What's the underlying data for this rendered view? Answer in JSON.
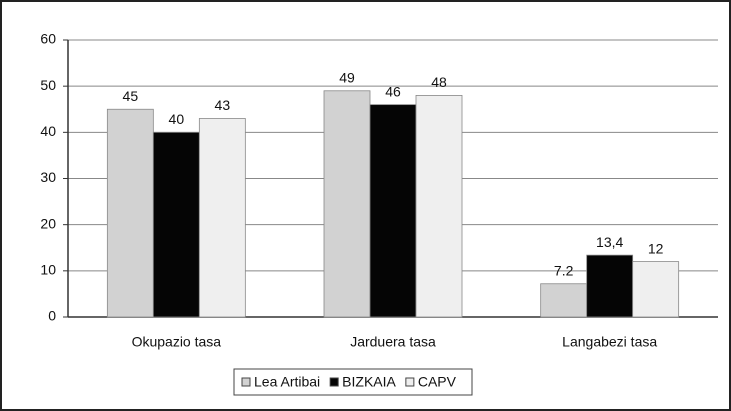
{
  "chart_data": {
    "type": "bar",
    "categories": [
      "Okupazio tasa",
      "Jarduera tasa",
      "Langabezi tasa"
    ],
    "series": [
      {
        "name": "Lea Artibai",
        "color": "#d2d2d2",
        "values": [
          45,
          49,
          7.2
        ]
      },
      {
        "name": "BIZKAIA",
        "color": "#050505",
        "values": [
          40,
          46,
          13.4
        ],
        "value_labels": [
          "40",
          "46",
          "13,4"
        ]
      },
      {
        "name": "CAPV",
        "color": "#efefef",
        "values": [
          43,
          48,
          12
        ]
      }
    ],
    "ylim": [
      0,
      60
    ],
    "yticks": [
      0,
      10,
      20,
      30,
      40,
      50,
      60
    ],
    "grid": true,
    "legend": "bottom"
  }
}
